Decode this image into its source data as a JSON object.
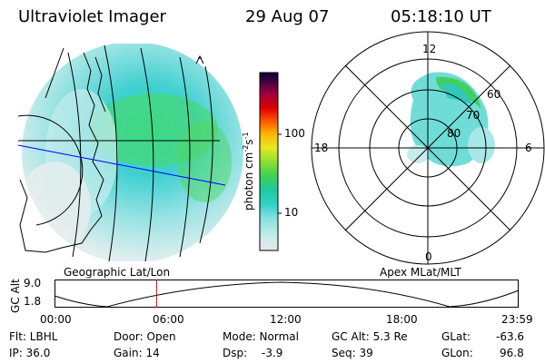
{
  "header": {
    "instrument": "Ultraviolet Imager",
    "date": "29 Aug 07",
    "time": "05:18:10 UT"
  },
  "colorbar": {
    "unit_label": "photon cm",
    "unit_sup1": "-2",
    "unit_mid": "s",
    "unit_sup2": "-1",
    "tick_100": "100",
    "tick_10": "10",
    "stops": [
      "#e8e8e8",
      "#c8ecec",
      "#88e0e0",
      "#30d0c8",
      "#20c8a0",
      "#40d050",
      "#90e030",
      "#e8e820",
      "#ffb000",
      "#ff6000",
      "#e00000",
      "#a00040",
      "#500040",
      "#000030"
    ]
  },
  "polar": {
    "mlt_12": "12",
    "mlt_18": "18",
    "mlt_6": "6",
    "mlt_0": "0",
    "lat_60": "60",
    "lat_70": "70",
    "lat_80": "80"
  },
  "panel_labels": {
    "left": "Geographic Lat/Lon",
    "right": "Apex MLat/MLT"
  },
  "altitude_plot": {
    "ylabel": "GC Alt",
    "ytick_high": "9.0",
    "ytick_low": "1.8",
    "xticks": [
      "00:00",
      "06:00",
      "12:00",
      "18:00",
      "23:59"
    ],
    "current_time_fraction": 0.22
  },
  "info": {
    "flt": "Flt: LBHL",
    "ip": "IP: 36.0",
    "door": "Door: Open",
    "gain": "Gain: 14",
    "mode": "Mode: Normal",
    "dsp_label": "Dsp:",
    "dsp_value": "-3.9",
    "gcalt": "GC Alt: 5.3 Re",
    "seq": "Seq: 39",
    "glat_label": "GLat:",
    "glat_value": "-63.6",
    "glon_label": "GLon:",
    "glon_value": "96.8"
  }
}
